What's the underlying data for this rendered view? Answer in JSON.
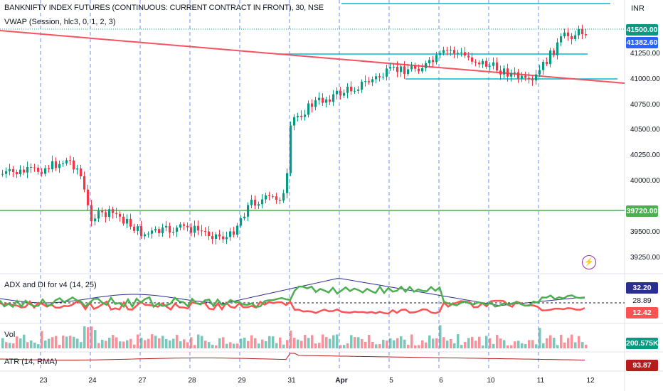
{
  "header": {
    "title": "BANKNIFTY INDEX FUTURES (CONTINUOUS: CURRENT CONTRACT IN FRONT), 30, NSE",
    "vwap_label": "VWAP (Session, hlc3, 0, 1, 2, 3)",
    "currency": "INR"
  },
  "price_axis": {
    "ticks": [
      "41250.00",
      "41000.00",
      "40750.00",
      "40500.00",
      "40250.00",
      "40000.00",
      "39500.00",
      "39250.00"
    ],
    "last_price_tag": "41500.00",
    "vwap_tag": "41382.60",
    "hline_tag": "39720.00"
  },
  "indicators": {
    "adx_label": "ADX and DI for v4 (14, 25)",
    "adx_tags": {
      "blue": "32.20",
      "level": "28.89",
      "red": "12.42"
    },
    "vol_label": "Vol",
    "vol_tag": "200.575K",
    "atr_label": "ATR (14, RMA)",
    "atr_tag": "93.87"
  },
  "x_axis": {
    "labels": [
      "23",
      "24",
      "27",
      "28",
      "29",
      "31",
      "Apr",
      "5",
      "6",
      "10",
      "11",
      "12"
    ]
  },
  "colors": {
    "up": "#089981",
    "down": "#f23645",
    "trendline": "#f7525f",
    "hline": "#4caf50",
    "cyan": "#00bcd4",
    "session_sep": "#2962ff",
    "adx_blue": "#2a2e8f",
    "di_plus": "#4caf50",
    "di_minus": "#ff5252",
    "atr": "#b71c1c",
    "vwap_tag_bg": "#2962ff",
    "adx_level_bg": "#ffffff"
  },
  "icons": {
    "alert": "lightning-alert-icon"
  },
  "alert_glyph": "⚡"
}
